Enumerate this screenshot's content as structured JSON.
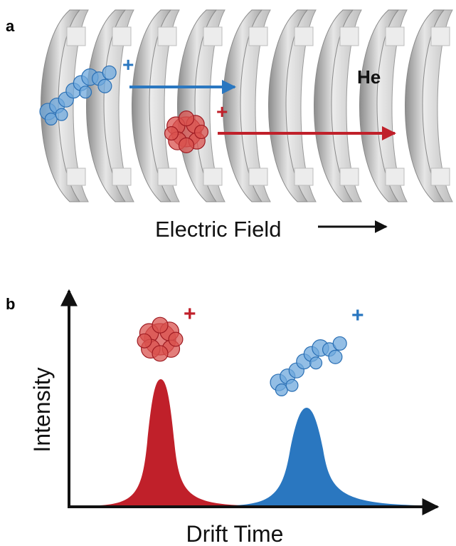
{
  "panels": [
    {
      "label": "a",
      "gas": "He",
      "ions": [
        {
          "charge": "+"
        },
        {
          "charge": "+"
        }
      ],
      "field_label": "Electric Field"
    },
    {
      "label": "b",
      "ions": [
        {
          "charge": "+"
        },
        {
          "charge": "+"
        }
      ],
      "y_axis_label": "Intensity",
      "x_axis_label": "Drift Time"
    }
  ]
}
